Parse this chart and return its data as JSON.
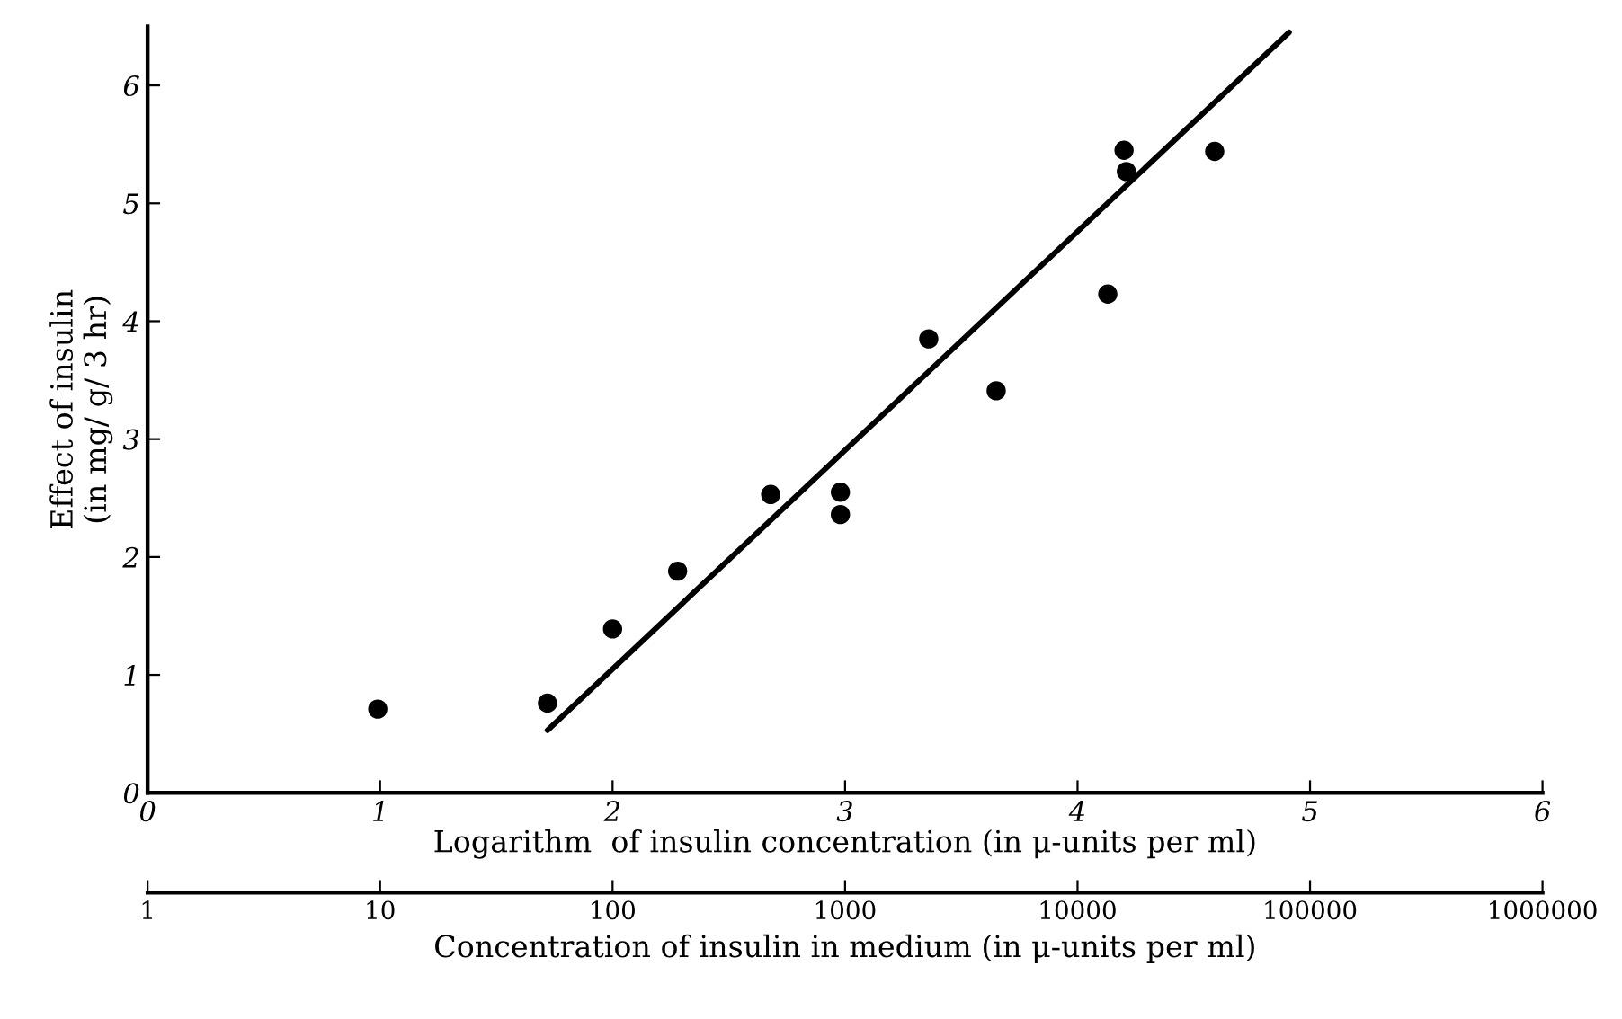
{
  "chart_data": {
    "type": "scatter",
    "xlabel": "Logarithm  of insulin concentration (in μ-units per ml)",
    "ylabel": "Effect of insulin\n(in mg/ g/ 3 hr)",
    "x2label": "Concentration of insulin in medium (in μ-units per ml)",
    "series": [
      {
        "marker": "circle",
        "color": "#000000",
        "x": [
          0.99,
          1.72,
          2.0,
          2.28,
          2.68,
          2.98,
          2.98,
          3.36,
          3.65,
          4.13,
          4.2,
          4.21,
          4.59
        ],
        "values": [
          0.71,
          0.76,
          1.39,
          1.88,
          2.53,
          2.55,
          2.36,
          3.85,
          3.41,
          4.23,
          5.45,
          5.27,
          5.44
        ]
      },
      {
        "type": "line",
        "color": "#000000",
        "x": [
          1.72,
          4.91
        ],
        "values": [
          0.53,
          6.45
        ]
      }
    ],
    "xlim": [
      0,
      6
    ],
    "xticks": [
      0,
      1,
      2,
      3,
      4,
      5,
      6
    ],
    "ylim": [
      0,
      6.5
    ],
    "yticks": [
      0,
      1,
      2,
      3,
      4,
      5,
      6
    ],
    "x2lim": [
      1,
      1000000
    ],
    "x2ticks": [
      1,
      10,
      100,
      1000,
      10000,
      100000,
      1000000
    ],
    "log": "x2",
    "grid": false,
    "legend": false
  }
}
